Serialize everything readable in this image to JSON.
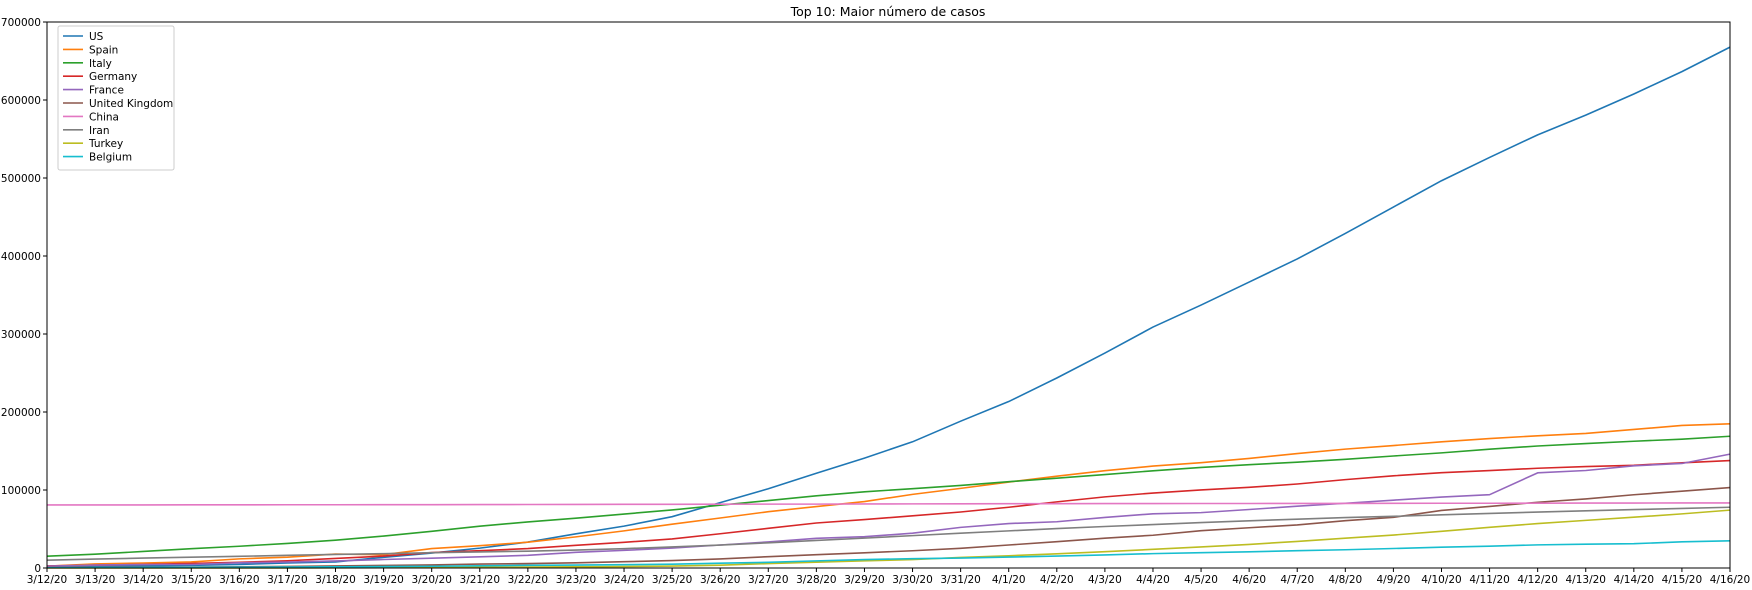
{
  "chart_data": {
    "type": "line",
    "title": "Top 10: Maior número de casos",
    "xlabel": "",
    "ylabel": "",
    "ylim": [
      0,
      700000
    ],
    "yticks": [
      0,
      100000,
      200000,
      300000,
      400000,
      500000,
      600000,
      700000
    ],
    "grid": false,
    "legend_position": "top-left",
    "categories": [
      "3/12/20",
      "3/13/20",
      "3/14/20",
      "3/15/20",
      "3/16/20",
      "3/17/20",
      "3/18/20",
      "3/19/20",
      "3/20/20",
      "3/21/20",
      "3/22/20",
      "3/23/20",
      "3/24/20",
      "3/25/20",
      "3/26/20",
      "3/27/20",
      "3/28/20",
      "3/29/20",
      "3/30/20",
      "3/31/20",
      "4/1/20",
      "4/2/20",
      "4/3/20",
      "4/4/20",
      "4/5/20",
      "4/6/20",
      "4/7/20",
      "4/8/20",
      "4/9/20",
      "4/10/20",
      "4/11/20",
      "4/12/20",
      "4/13/20",
      "4/14/20",
      "4/15/20",
      "4/16/20"
    ],
    "series": [
      {
        "name": "US",
        "color": "#1f77b4",
        "values": [
          1600,
          2200,
          2700,
          3500,
          4600,
          6400,
          7800,
          13700,
          19100,
          25500,
          33300,
          43800,
          53700,
          65800,
          83800,
          101600,
          121500,
          140900,
          161800,
          188200,
          213400,
          243600,
          275600,
          308900,
          337100,
          366600,
          396200,
          428900,
          462800,
          496500,
          526400,
          555300,
          580600,
          607700,
          636400,
          667800
        ]
      },
      {
        "name": "Spain",
        "color": "#ff7f0e",
        "values": [
          2300,
          5200,
          6400,
          7800,
          11700,
          13900,
          17900,
          17100,
          24900,
          28600,
          33100,
          39900,
          47600,
          56200,
          64100,
          72200,
          78800,
          85200,
          94400,
          102100,
          110200,
          117700,
          124700,
          130700,
          135000,
          140500,
          146700,
          152400,
          157000,
          161800,
          166000,
          169500,
          172500,
          177600,
          182800,
          184900
        ]
      },
      {
        "name": "Italy",
        "color": "#2ca02c",
        "values": [
          15100,
          17700,
          21200,
          24700,
          27900,
          31500,
          35700,
          41000,
          47000,
          53600,
          59100,
          63900,
          69200,
          74400,
          80500,
          86500,
          92500,
          97700,
          101700,
          105800,
          110600,
          115200,
          119800,
          124600,
          128900,
          132500,
          135600,
          139400,
          143600,
          147600,
          152300,
          156400,
          159500,
          162500,
          165200,
          168900
        ]
      },
      {
        "name": "Germany",
        "color": "#d62728",
        "values": [
          2700,
          3600,
          4600,
          5800,
          7300,
          9300,
          12300,
          15300,
          19800,
          22200,
          24900,
          29100,
          32900,
          37300,
          43900,
          50900,
          57700,
          62100,
          66900,
          71800,
          77900,
          84800,
          91200,
          96100,
          100100,
          103400,
          107700,
          113300,
          118200,
          122200,
          124900,
          127900,
          130100,
          131700,
          134800,
          137700
        ]
      },
      {
        "name": "France",
        "color": "#9467bd",
        "values": [
          2300,
          3700,
          4500,
          4500,
          6600,
          7700,
          9100,
          10900,
          12600,
          14300,
          16200,
          20100,
          22600,
          25600,
          29500,
          33400,
          38100,
          40200,
          44600,
          52100,
          57000,
          59300,
          64800,
          69500,
          71000,
          75000,
          79200,
          83000,
          87000,
          91000,
          94000,
          122000,
          125000,
          131000,
          134000,
          146000
        ]
      },
      {
        "name": "United Kingdom",
        "color": "#8c564b",
        "values": [
          600,
          800,
          1100,
          1200,
          1600,
          2000,
          2600,
          3300,
          4000,
          5000,
          5700,
          6700,
          8100,
          9500,
          11600,
          14500,
          17100,
          19500,
          22100,
          25200,
          29500,
          33700,
          38200,
          42000,
          47800,
          51600,
          55200,
          60700,
          65000,
          73800,
          78900,
          84300,
          88600,
          93900,
          98500,
          103100
        ]
      },
      {
        "name": "China",
        "color": "#e377c2",
        "values": [
          80900,
          80900,
          80900,
          81000,
          81000,
          81100,
          81100,
          81200,
          81200,
          81300,
          81400,
          81500,
          81600,
          81700,
          81800,
          81900,
          81900,
          82100,
          82200,
          82300,
          82400,
          82500,
          82600,
          82600,
          82700,
          82700,
          82800,
          82800,
          82900,
          83000,
          83000,
          83100,
          83200,
          83300,
          83400,
          83400
        ]
      },
      {
        "name": "Iran",
        "color": "#7f7f7f",
        "values": [
          10000,
          11400,
          12700,
          13900,
          15000,
          16200,
          17400,
          18400,
          19600,
          20600,
          21600,
          23000,
          24800,
          27000,
          29400,
          32300,
          35400,
          38300,
          41500,
          44600,
          47600,
          50500,
          53200,
          55700,
          58200,
          60500,
          62600,
          64600,
          66200,
          68200,
          70000,
          71700,
          73300,
          74900,
          76400,
          77900
        ]
      },
      {
        "name": "Turkey",
        "color": "#bcbd22",
        "values": [
          1,
          5,
          6,
          18,
          47,
          98,
          191,
          359,
          670,
          947,
          1236,
          1529,
          1872,
          2433,
          3629,
          5698,
          7402,
          9217,
          10827,
          13531,
          15679,
          18135,
          20921,
          23934,
          27069,
          30217,
          34109,
          38226,
          42282,
          47029,
          52167,
          56956,
          61049,
          65111,
          69392,
          74193
        ]
      },
      {
        "name": "Belgium",
        "color": "#17becf",
        "values": [
          314,
          559,
          689,
          886,
          1058,
          1243,
          1486,
          1795,
          2257,
          2815,
          3401,
          3743,
          4269,
          4937,
          6235,
          7284,
          9134,
          10836,
          11899,
          12775,
          13964,
          15348,
          16770,
          18431,
          19691,
          20814,
          22194,
          23403,
          24983,
          26667,
          28018,
          29647,
          30589,
          31119,
          33573,
          34809
        ]
      }
    ]
  }
}
